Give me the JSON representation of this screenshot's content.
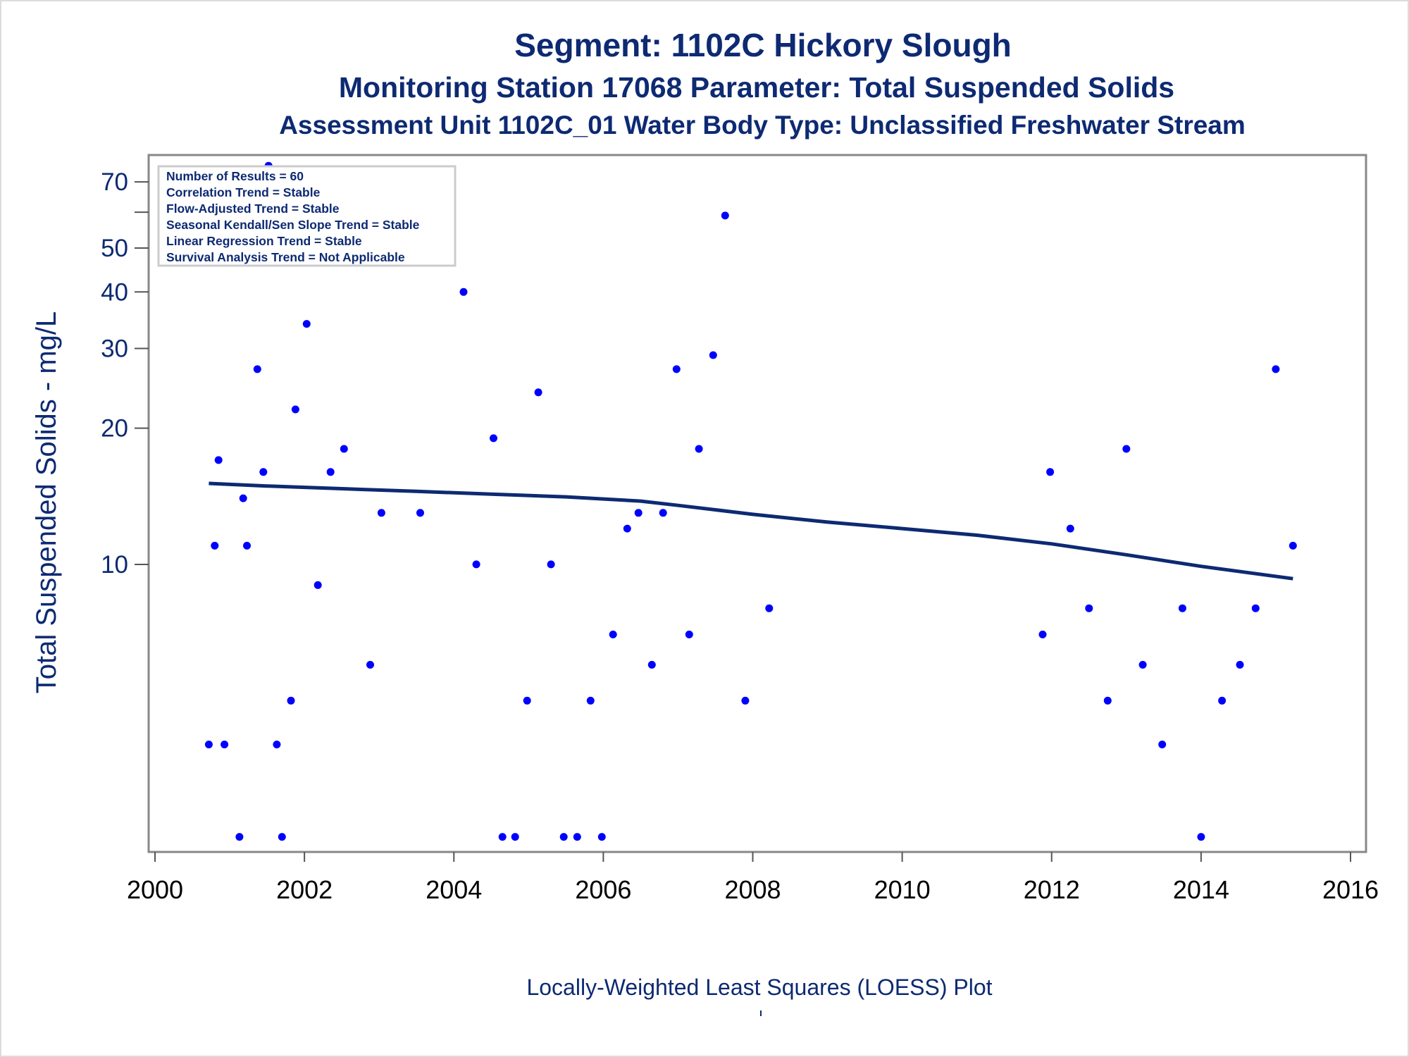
{
  "titles": {
    "line1": "Segment: 1102C  Hickory Slough",
    "line2": "Monitoring Station 17068 Parameter: Total Suspended Solids",
    "line3": "Assessment Unit 1102C_01   Water Body Type: Unclassified Freshwater Stream"
  },
  "stats": [
    "Number of Results = 60",
    "Correlation Trend = Stable",
    "Flow-Adjusted Trend = Stable",
    "Seasonal Kendall/Sen Slope Trend = Stable",
    "Linear Regression Trend = Stable",
    "Survival Analysis Trend = Not Applicable"
  ],
  "footnote": "Locally-Weighted Least Squares (LOESS) Plot",
  "chart_data": {
    "type": "scatter",
    "ylabel": "Total Suspended Solids - mg/L",
    "xlabel": "",
    "y_scale": "log",
    "xlim": [
      2000,
      2016
    ],
    "ylim": [
      2.4,
      78
    ],
    "x_ticks": [
      "2000",
      "2002",
      "2004",
      "2006",
      "2008",
      "2010",
      "2012",
      "2014",
      "2016"
    ],
    "y_ticks": [
      {
        "value": 10,
        "label": "10"
      },
      {
        "value": 20,
        "label": "20"
      },
      {
        "value": 30,
        "label": "30"
      },
      {
        "value": 40,
        "label": "40"
      },
      {
        "value": 50,
        "label": "50"
      },
      {
        "value": 60,
        "label": ""
      },
      {
        "value": 70,
        "label": "70"
      }
    ],
    "colors": {
      "points": "#0000ff",
      "line": "#0d2a72",
      "axis": "#888888"
    },
    "series": [
      {
        "type": "scatter",
        "points": [
          [
            2000.72,
            4.0
          ],
          [
            2000.8,
            11.0
          ],
          [
            2000.85,
            17.0
          ],
          [
            2000.93,
            4.0
          ],
          [
            2001.13,
            2.5
          ],
          [
            2001.18,
            14.0
          ],
          [
            2001.23,
            11.0
          ],
          [
            2001.37,
            27.0
          ],
          [
            2001.45,
            16.0
          ],
          [
            2001.52,
            76.0
          ],
          [
            2001.63,
            4.0
          ],
          [
            2001.7,
            2.5
          ],
          [
            2001.82,
            5.0
          ],
          [
            2001.88,
            22.0
          ],
          [
            2002.03,
            34.0
          ],
          [
            2002.18,
            9.0
          ],
          [
            2002.35,
            16.0
          ],
          [
            2002.53,
            18.0
          ],
          [
            2002.88,
            6.0
          ],
          [
            2003.03,
            13.0
          ],
          [
            2003.55,
            13.0
          ],
          [
            2004.13,
            40.0
          ],
          [
            2004.3,
            10.0
          ],
          [
            2004.53,
            19.0
          ],
          [
            2004.65,
            2.5
          ],
          [
            2004.82,
            2.5
          ],
          [
            2004.98,
            5.0
          ],
          [
            2005.13,
            24.0
          ],
          [
            2005.3,
            10.0
          ],
          [
            2005.47,
            2.5
          ],
          [
            2005.65,
            2.5
          ],
          [
            2005.83,
            5.0
          ],
          [
            2005.98,
            2.5
          ],
          [
            2006.13,
            7.0
          ],
          [
            2006.32,
            12.0
          ],
          [
            2006.47,
            13.0
          ],
          [
            2006.65,
            6.0
          ],
          [
            2006.8,
            13.0
          ],
          [
            2006.98,
            27.0
          ],
          [
            2007.15,
            7.0
          ],
          [
            2007.28,
            18.0
          ],
          [
            2007.47,
            29.0
          ],
          [
            2007.63,
            59.0
          ],
          [
            2007.9,
            5.0
          ],
          [
            2008.22,
            8.0
          ],
          [
            2011.88,
            7.0
          ],
          [
            2011.98,
            16.0
          ],
          [
            2012.25,
            12.0
          ],
          [
            2012.5,
            8.0
          ],
          [
            2012.75,
            5.0
          ],
          [
            2013.0,
            18.0
          ],
          [
            2013.22,
            6.0
          ],
          [
            2013.48,
            4.0
          ],
          [
            2013.75,
            8.0
          ],
          [
            2014.0,
            2.5
          ],
          [
            2014.28,
            5.0
          ],
          [
            2014.52,
            6.0
          ],
          [
            2014.73,
            8.0
          ],
          [
            2015.0,
            27.0
          ],
          [
            2015.23,
            11.0
          ]
        ]
      },
      {
        "type": "line",
        "name": "LOESS",
        "points": [
          [
            2000.72,
            15.1
          ],
          [
            2001.5,
            14.9
          ],
          [
            2002.5,
            14.7
          ],
          [
            2003.5,
            14.5
          ],
          [
            2004.5,
            14.3
          ],
          [
            2005.5,
            14.1
          ],
          [
            2006.5,
            13.8
          ],
          [
            2007.0,
            13.5
          ],
          [
            2007.5,
            13.2
          ],
          [
            2008.0,
            12.9
          ],
          [
            2009.0,
            12.4
          ],
          [
            2010.0,
            12.0
          ],
          [
            2011.0,
            11.6
          ],
          [
            2012.0,
            11.1
          ],
          [
            2013.0,
            10.5
          ],
          [
            2014.0,
            9.9
          ],
          [
            2015.23,
            9.3
          ]
        ]
      }
    ]
  }
}
